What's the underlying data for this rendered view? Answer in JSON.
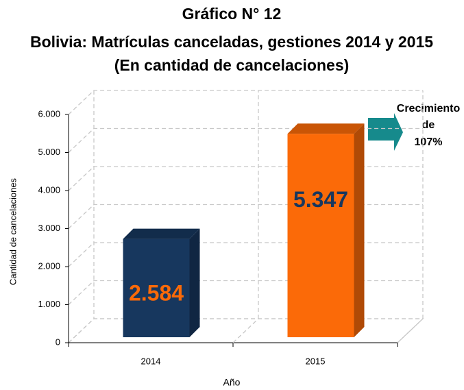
{
  "chart_data": {
    "type": "bar3d",
    "title_lines": [
      "Gráfico N° 12",
      "Bolivia: Matrículas canceladas, gestiones 2014 y 2015",
      "(En cantidad de cancelaciones)"
    ],
    "y_label": "Cantidad de cancelaciones",
    "x_label": "Año",
    "categories": [
      "2014",
      "2015"
    ],
    "values": [
      2584,
      5347
    ],
    "value_labels": [
      "2.584",
      "5.347"
    ],
    "colors": [
      "#17375e",
      "#fb6a08"
    ],
    "label_colors": [
      "#fb6a08",
      "#17375e"
    ],
    "ylim": [
      0,
      6000
    ],
    "yticks": [
      0,
      {
        "value": 1000,
        "label": "1.000"
      },
      {
        "value": 2000,
        "label": "2.000"
      },
      {
        "value": 3000,
        "label": "3.000"
      },
      {
        "value": 4000,
        "label": "4.000"
      },
      {
        "value": 5000,
        "label": "5.000"
      },
      {
        "value": 6000,
        "label": "6.000"
      }
    ],
    "grid": true,
    "annotation_lines": [
      "Crecimiento",
      "de",
      "107%"
    ]
  }
}
